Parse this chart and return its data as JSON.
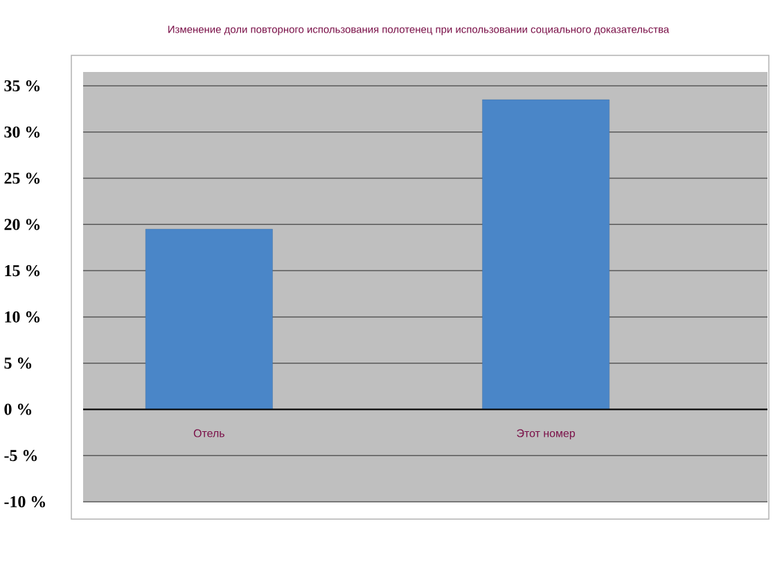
{
  "chart_data": {
    "type": "bar",
    "title": "Изменение доли повторного использования полотенец при использовании социального доказательства",
    "categories": [
      "Отель",
      "Этот номер"
    ],
    "values": [
      19.5,
      33.5
    ],
    "color": "#4a86c8",
    "ylim": [
      -10,
      36.5
    ],
    "yticks": [
      {
        "value": -10,
        "label": "-10 %"
      },
      {
        "value": -5,
        "label": "-5 %"
      },
      {
        "value": 0,
        "label": "0 %"
      },
      {
        "value": 5,
        "label": "5 %"
      },
      {
        "value": 10,
        "label": "10 %"
      },
      {
        "value": 15,
        "label": "15 %"
      },
      {
        "value": 20,
        "label": "20 %"
      },
      {
        "value": 25,
        "label": "25 %"
      },
      {
        "value": 30,
        "label": "30 %"
      },
      {
        "value": 35,
        "label": "35 %"
      }
    ],
    "grid": "y"
  }
}
